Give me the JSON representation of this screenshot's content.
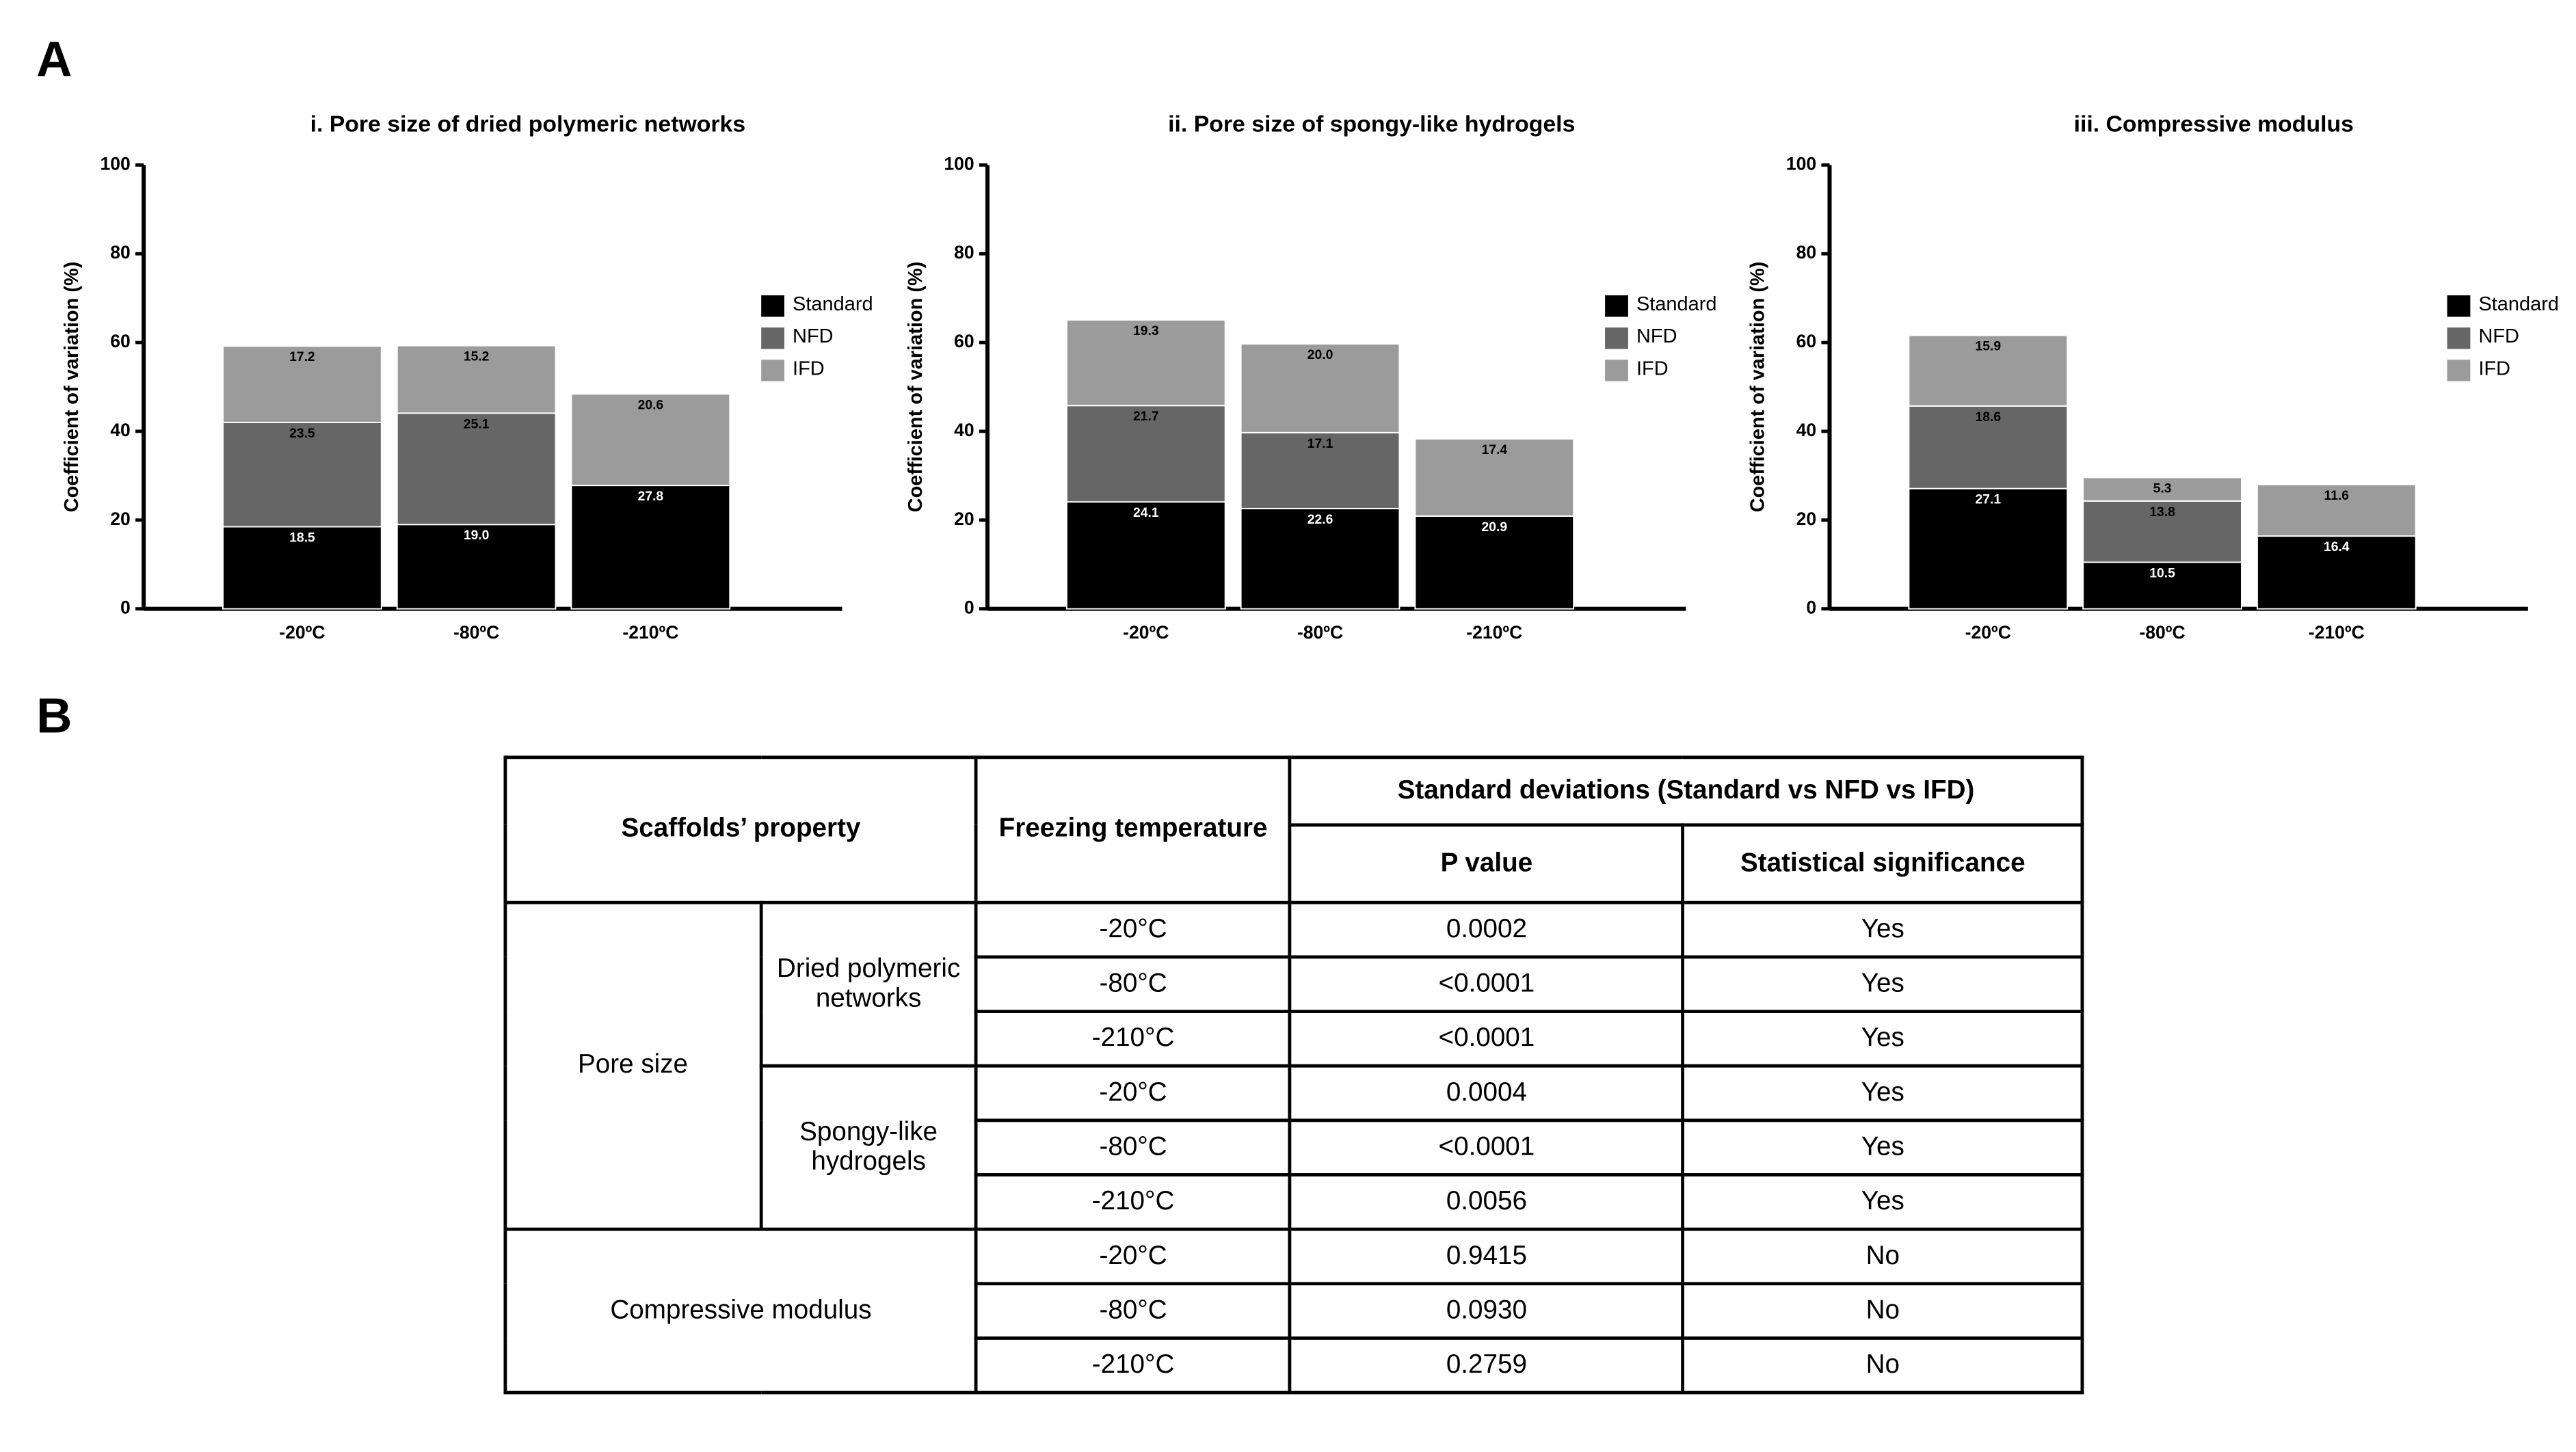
{
  "panel_a_label": "A",
  "panel_b_label": "B",
  "chart_data": [
    {
      "type": "bar",
      "stacked": true,
      "title": "i. Pore size of dried polymeric networks",
      "y_label": "Coefficient of variation (%)",
      "categories": [
        "-20ºC",
        "-80ºC",
        "-210ºC"
      ],
      "ylim": [
        0,
        100
      ],
      "yticks": [
        0,
        20,
        40,
        60,
        80,
        100
      ],
      "legend": "right",
      "series": [
        {
          "name": "Standard",
          "color": "#000000",
          "label_color": "#ffffff",
          "values": [
            18.5,
            19,
            27.8
          ],
          "value_labels": [
            "18.5",
            "19.0",
            "27.8"
          ]
        },
        {
          "name": "NFD",
          "color": "#666666",
          "label_color": "#000000",
          "values": [
            23.5,
            25.1,
            null
          ],
          "value_labels": [
            "23.5",
            "25.1",
            null
          ]
        },
        {
          "name": "IFD",
          "color": "#9b9b9b",
          "label_color": "#000000",
          "values": [
            17.2,
            15.2,
            20.6
          ],
          "value_labels": [
            "17.2",
            "15.2",
            "20.6"
          ]
        }
      ]
    },
    {
      "type": "bar",
      "stacked": true,
      "title": "ii. Pore size of spongy-like hydrogels",
      "y_label": "Coefficient of variation (%)",
      "categories": [
        "-20ºC",
        "-80ºC",
        "-210ºC"
      ],
      "ylim": [
        0,
        100
      ],
      "yticks": [
        0,
        20,
        40,
        60,
        80,
        100
      ],
      "legend": "right",
      "series": [
        {
          "name": "Standard",
          "color": "#000000",
          "label_color": "#ffffff",
          "values": [
            24.1,
            22.6,
            20.9
          ],
          "value_labels": [
            "24.1",
            "22.6",
            "20.9"
          ]
        },
        {
          "name": "NFD",
          "color": "#666666",
          "label_color": "#000000",
          "values": [
            21.7,
            17.1,
            null
          ],
          "value_labels": [
            "21.7",
            "17.1",
            null
          ]
        },
        {
          "name": "IFD",
          "color": "#9b9b9b",
          "label_color": "#000000",
          "values": [
            19.3,
            20,
            17.4
          ],
          "value_labels": [
            "19.3",
            "20.0",
            "17.4"
          ]
        }
      ]
    },
    {
      "type": "bar",
      "stacked": true,
      "title": "iii. Compressive modulus",
      "y_label": "Coefficient of variation (%)",
      "categories": [
        "-20ºC",
        "-80ºC",
        "-210ºC"
      ],
      "ylim": [
        0,
        100
      ],
      "yticks": [
        0,
        20,
        40,
        60,
        80,
        100
      ],
      "legend": "right",
      "series": [
        {
          "name": "Standard",
          "color": "#000000",
          "label_color": "#ffffff",
          "values": [
            27.1,
            10.5,
            16.4
          ],
          "value_labels": [
            "27.1",
            "10.5",
            "16.4"
          ]
        },
        {
          "name": "NFD",
          "color": "#666666",
          "label_color": "#000000",
          "values": [
            18.6,
            13.8,
            null
          ],
          "value_labels": [
            "18.6",
            "13.8",
            null
          ]
        },
        {
          "name": "IFD",
          "color": "#9b9b9b",
          "label_color": "#000000",
          "values": [
            15.9,
            5.3,
            11.6
          ],
          "value_labels": [
            "15.9",
            "5.3",
            "11.6"
          ]
        }
      ]
    }
  ],
  "table": {
    "header": {
      "property": "Scaffolds’ property",
      "temperature": "Freezing temperature",
      "group": "Standard deviations (Standard vs NFD vs IFD)",
      "p_value": "P value",
      "significance": "Statistical significance"
    },
    "groups": [
      {
        "property": "Pore size",
        "subgroups": [
          {
            "name": "Dried polymeric networks",
            "rows": [
              [
                "-20°C",
                "0.0002",
                "Yes"
              ],
              [
                "-80°C",
                "<0.0001",
                "Yes"
              ],
              [
                "-210°C",
                "<0.0001",
                "Yes"
              ]
            ]
          },
          {
            "name": "Spongy-like hydrogels",
            "rows": [
              [
                "-20°C",
                "0.0004",
                "Yes"
              ],
              [
                "-80°C",
                "<0.0001",
                "Yes"
              ],
              [
                "-210°C",
                "0.0056",
                "Yes"
              ]
            ]
          }
        ]
      },
      {
        "property": "Compressive modulus",
        "subgroups": [
          {
            "name": null,
            "rows": [
              [
                "-20°C",
                "0.9415",
                "No"
              ],
              [
                "-80°C",
                "0.0930",
                "No"
              ],
              [
                "-210°C",
                "0.2759",
                "No"
              ]
            ]
          }
        ]
      }
    ]
  }
}
